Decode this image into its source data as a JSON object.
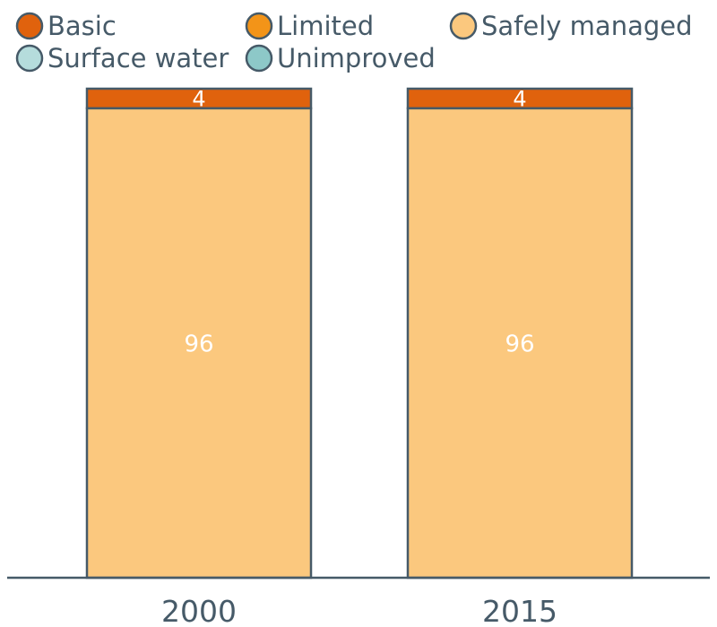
{
  "colors": {
    "Basic": "#e0620d",
    "Limited": "#f39418",
    "Safely managed": "#fbc87e",
    "Surface water": "#b5dcdc",
    "Unimproved": "#8dc8c8",
    "stroke": "#465a68",
    "text": "#465a68",
    "label_light": "#ffffff"
  },
  "chart_data": {
    "type": "bar",
    "stacked": true,
    "legend_position": "top",
    "grid": false,
    "categories": [
      "2000",
      "2015"
    ],
    "legend": [
      {
        "name": "Basic",
        "color_key": "Basic"
      },
      {
        "name": "Limited",
        "color_key": "Limited"
      },
      {
        "name": "Safely managed",
        "color_key": "Safely managed"
      },
      {
        "name": "Surface water",
        "color_key": "Surface water"
      },
      {
        "name": "Unimproved",
        "color_key": "Unimproved"
      }
    ],
    "series": [
      {
        "name": "Surface water",
        "values": [
          0,
          0
        ]
      },
      {
        "name": "Unimproved",
        "values": [
          0,
          0
        ]
      },
      {
        "name": "Limited",
        "values": [
          0,
          0
        ]
      },
      {
        "name": "Safely managed",
        "values": [
          96,
          96
        ]
      },
      {
        "name": "Basic",
        "values": [
          4,
          4
        ]
      }
    ],
    "data_labels": {
      "Safely managed": [
        "96",
        "96"
      ],
      "Basic": [
        "4",
        "4"
      ]
    },
    "ylim": [
      0,
      100
    ],
    "title": "",
    "xlabel": "",
    "ylabel": ""
  }
}
